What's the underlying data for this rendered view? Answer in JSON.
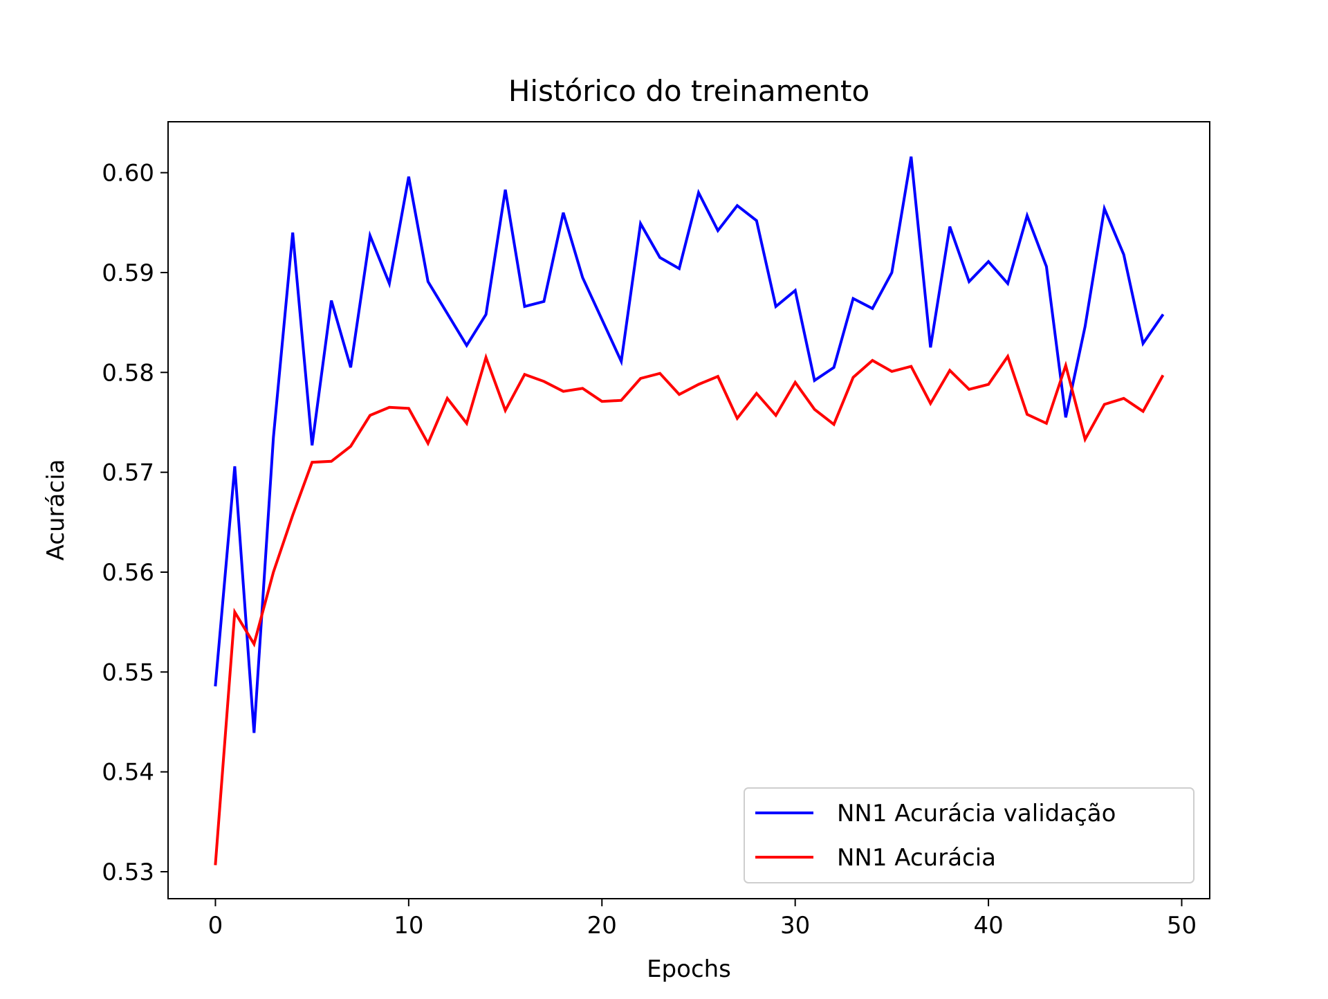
{
  "chart_data": {
    "type": "line",
    "title": "Histórico do treinamento",
    "xlabel": "Epochs",
    "ylabel": "Acurácia",
    "xlim": [
      -2.45,
      51.45
    ],
    "ylim": [
      0.5273,
      0.6051
    ],
    "xticks": [
      0,
      10,
      20,
      30,
      40,
      50
    ],
    "xtick_labels": [
      "0",
      "10",
      "20",
      "30",
      "40",
      "50"
    ],
    "yticks": [
      0.53,
      0.54,
      0.55,
      0.56,
      0.57,
      0.58,
      0.59,
      0.6
    ],
    "ytick_labels": [
      "0.53",
      "0.54",
      "0.55",
      "0.56",
      "0.57",
      "0.58",
      "0.59",
      "0.60"
    ],
    "grid": false,
    "legend_position": "lower-right",
    "x": [
      0,
      1,
      2,
      3,
      4,
      5,
      6,
      7,
      8,
      9,
      10,
      11,
      12,
      13,
      14,
      15,
      16,
      17,
      18,
      19,
      20,
      21,
      22,
      23,
      24,
      25,
      26,
      27,
      28,
      29,
      30,
      31,
      32,
      33,
      34,
      35,
      36,
      37,
      38,
      39,
      40,
      41,
      42,
      43,
      44,
      45,
      46,
      47,
      48,
      49
    ],
    "series": [
      {
        "name": "NN1 Acurácia validação",
        "color": "#0000ff",
        "values": [
          0.5487,
          0.5706,
          0.5439,
          0.5735,
          0.594,
          0.5727,
          0.5872,
          0.5805,
          0.5937,
          0.5889,
          0.5996,
          0.5891,
          0.5859,
          0.5827,
          0.5858,
          0.5983,
          0.5866,
          0.5871,
          0.596,
          0.5895,
          0.5853,
          0.5811,
          0.5949,
          0.5915,
          0.5904,
          0.598,
          0.5942,
          0.5967,
          0.5952,
          0.5866,
          0.5882,
          0.5792,
          0.5805,
          0.5874,
          0.5864,
          0.59,
          0.6016,
          0.5825,
          0.5946,
          0.5891,
          0.5911,
          0.5889,
          0.5957,
          0.5906,
          0.5755,
          0.5846,
          0.5964,
          0.5918,
          0.5829,
          0.5857
        ]
      },
      {
        "name": "NN1 Acurácia",
        "color": "#ff0000",
        "values": [
          0.5308,
          0.556,
          0.5528,
          0.56,
          0.5657,
          0.571,
          0.5711,
          0.5726,
          0.5757,
          0.5765,
          0.5764,
          0.5729,
          0.5774,
          0.5749,
          0.5815,
          0.5762,
          0.5798,
          0.5791,
          0.5781,
          0.5784,
          0.5771,
          0.5772,
          0.5794,
          0.5799,
          0.5778,
          0.5788,
          0.5796,
          0.5754,
          0.5779,
          0.5757,
          0.579,
          0.5763,
          0.5748,
          0.5795,
          0.5812,
          0.5801,
          0.5806,
          0.5769,
          0.5802,
          0.5783,
          0.5788,
          0.5816,
          0.5758,
          0.5749,
          0.5807,
          0.5733,
          0.5768,
          0.5774,
          0.5761,
          0.5796
        ]
      }
    ]
  }
}
